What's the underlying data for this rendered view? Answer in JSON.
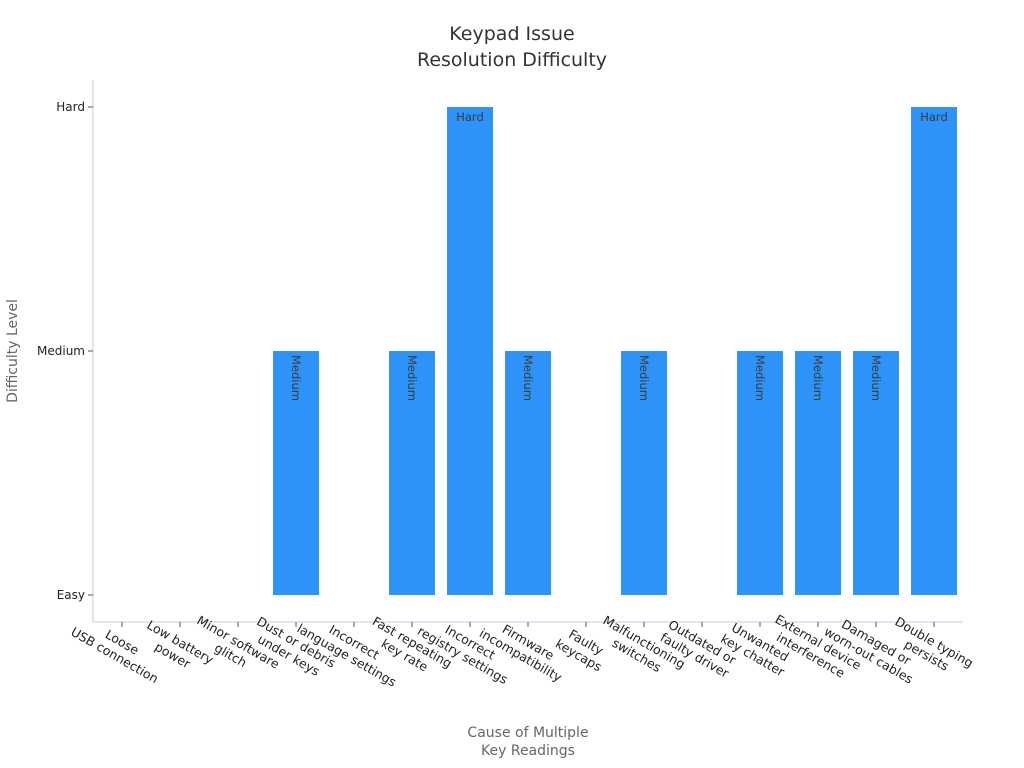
{
  "chart_data": {
    "type": "bar",
    "title_lines": [
      "Keypad Issue",
      "Resolution Difficulty"
    ],
    "xlabel_lines": [
      "Cause of Multiple",
      "Key Readings"
    ],
    "ylabel": "Difficulty Level",
    "y_levels": [
      "Easy",
      "Medium",
      "Hard"
    ],
    "categories": [
      [
        "Loose",
        "USB connection"
      ],
      [
        "Low battery",
        "power"
      ],
      [
        "Minor software",
        "glitch"
      ],
      [
        "Dust or debris",
        "under keys"
      ],
      [
        "Incorrect",
        "language settings"
      ],
      [
        "Fast repeating",
        "key rate"
      ],
      [
        "Incorrect",
        "registry settings"
      ],
      [
        "Firmware",
        "incompatibility"
      ],
      [
        "Faulty",
        "keycaps"
      ],
      [
        "Malfunctioning",
        "switches"
      ],
      [
        "Outdated or",
        "faulty driver"
      ],
      [
        "Unwanted",
        "key chatter"
      ],
      [
        "External device",
        "interference"
      ],
      [
        "Damaged or",
        "worn-out cables"
      ],
      [
        "Double typing",
        "persists"
      ]
    ],
    "values": [
      "Easy",
      "Easy",
      "Easy",
      "Medium",
      "Easy",
      "Medium",
      "Hard",
      "Medium",
      "Easy",
      "Medium",
      "Easy",
      "Medium",
      "Medium",
      "Medium",
      "Hard"
    ],
    "bar_color": "#2e93f9",
    "grid": false
  }
}
